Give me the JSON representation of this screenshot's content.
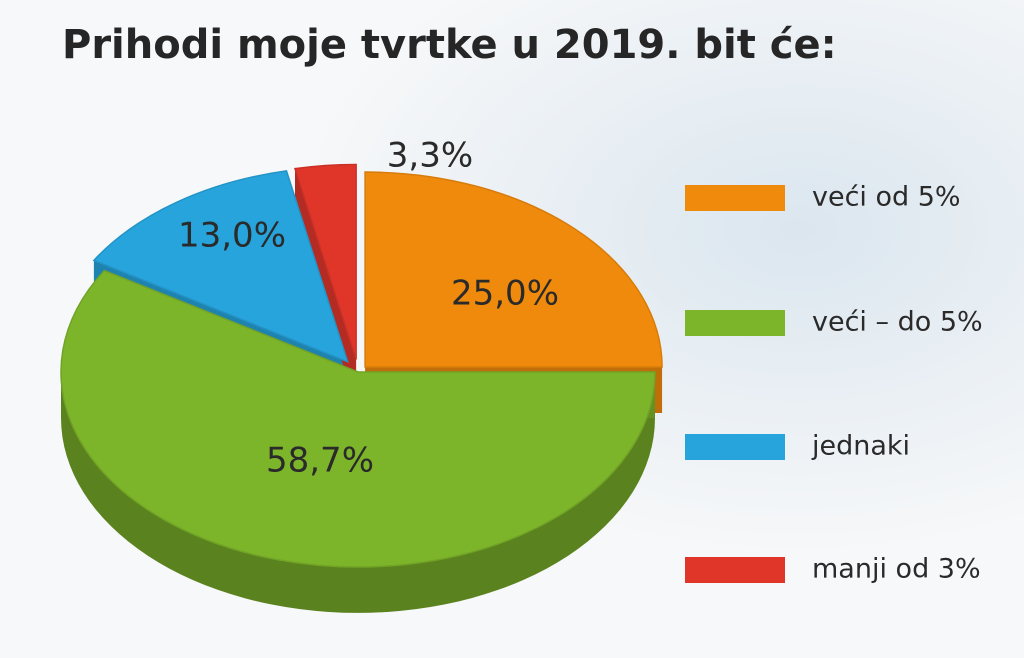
{
  "chart_data": {
    "type": "pie",
    "title": "Prihodi moje tvrtke u 2019. bit će:",
    "categories": [
      "veći od 5%",
      "veći – do 5%",
      "jednaki",
      "manji od 3%"
    ],
    "values": [
      25.0,
      58.7,
      13.0,
      3.3
    ],
    "value_labels": [
      "25,0%",
      "58,7%",
      "13,0%",
      "3,3%"
    ],
    "colors": [
      "#ef8a0c",
      "#7db52a",
      "#27a4dc",
      "#e0362a"
    ],
    "legend": "right"
  }
}
